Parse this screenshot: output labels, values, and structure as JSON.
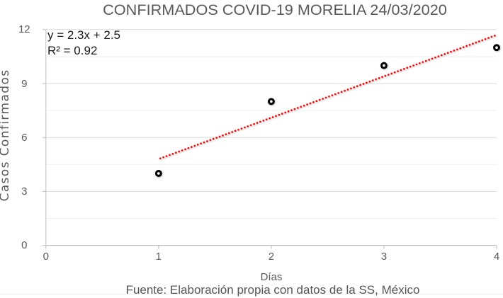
{
  "chart_data": {
    "type": "scatter",
    "title": "CONFIRMADOS COVID-19 MORELIA 24/03/2020",
    "xlabel": "Días",
    "ylabel": "Casos Confirmados",
    "source_note": "Fuente: Elaboración propia con datos de la SS, México",
    "x": [
      1,
      2,
      3,
      4
    ],
    "y": [
      4,
      8,
      10,
      11
    ],
    "xlim": [
      0,
      4
    ],
    "ylim": [
      0,
      12
    ],
    "x_ticks": [
      0,
      1,
      2,
      3,
      4
    ],
    "y_ticks": [
      0,
      3,
      6,
      9,
      12
    ],
    "y_minor_step": 1.5,
    "grid": "horizontal major and minor, no vertical gridlines",
    "legend": "none",
    "marker": {
      "shape": "open-circle",
      "color": "#000000",
      "fill": "#ffffff"
    },
    "trendline": {
      "type": "linear",
      "equation": "y = 2.3x + 2.5",
      "r_squared_label": "R² = 0.92",
      "slope": 2.3,
      "intercept": 2.5,
      "x_range": [
        1,
        4
      ],
      "color": "#ff0000",
      "style": "dotted"
    }
  },
  "colors": {
    "title_text": "#595959",
    "tick_text": "#595959",
    "annotation_text": "#1a1a1a",
    "axis_line": "#bfbfbf",
    "major_gridline": "#d9d9d9",
    "minor_gridline": "#efefef",
    "trendline": "#ff0000",
    "marker_stroke": "#000000",
    "background": "#ffffff"
  }
}
